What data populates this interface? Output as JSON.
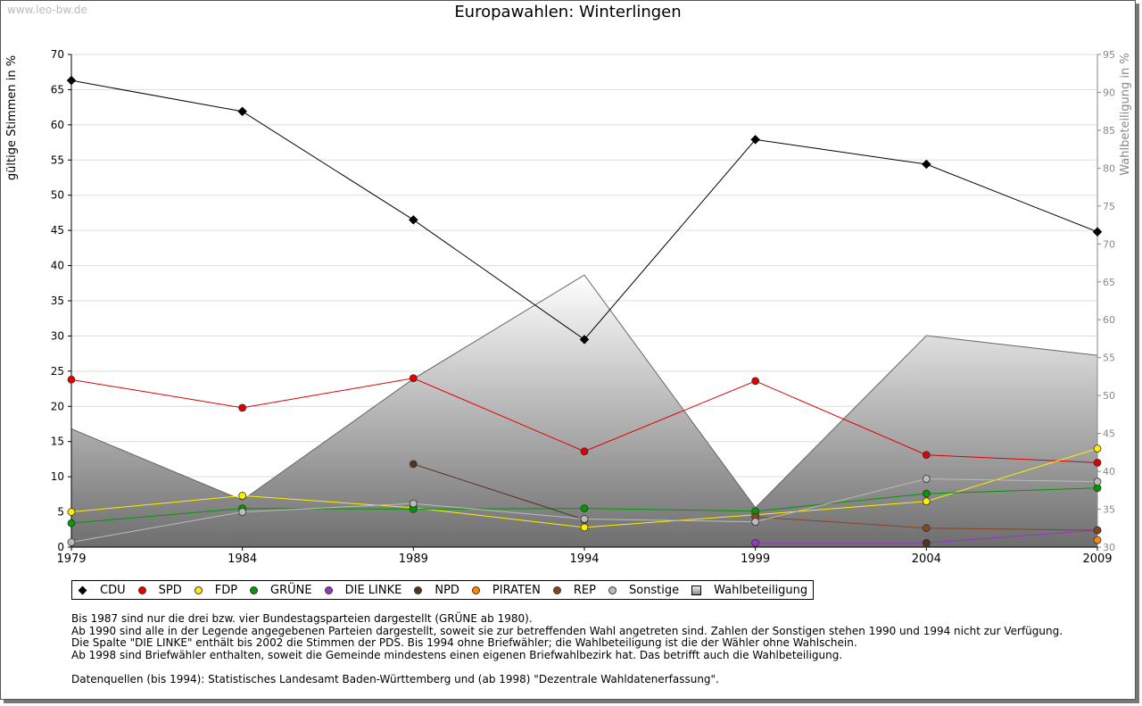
{
  "watermark": "www.leo-bw.de",
  "chart_data": {
    "type": "line",
    "title": "Europawahlen: Winterlingen",
    "ylabel": "gültige Stimmen in %",
    "y2label": "Wahlbeteiligung in %",
    "ylim": [
      0,
      70
    ],
    "y2lim": [
      30,
      95
    ],
    "yticks": [
      0,
      5,
      10,
      15,
      20,
      25,
      30,
      35,
      40,
      45,
      50,
      55,
      60,
      65,
      70
    ],
    "y2ticks": [
      30,
      35,
      40,
      45,
      50,
      55,
      60,
      65,
      70,
      75,
      80,
      85,
      90,
      95
    ],
    "x": [
      "1979",
      "1984",
      "1989",
      "1994",
      "1999",
      "2004",
      "2009"
    ],
    "grid": true,
    "legend_position": "bottom",
    "series": [
      {
        "name": "CDU",
        "color": "#000000",
        "marker": "diamond",
        "values": [
          66.3,
          61.9,
          46.5,
          29.5,
          57.9,
          54.4,
          44.8
        ]
      },
      {
        "name": "SPD",
        "color": "#e00000",
        "values": [
          23.8,
          19.8,
          24.0,
          13.6,
          23.6,
          13.1,
          12.0
        ]
      },
      {
        "name": "FDP",
        "color": "#ffee00",
        "values": [
          5.0,
          7.3,
          5.6,
          2.8,
          4.6,
          6.5,
          14.0
        ]
      },
      {
        "name": "GRÜNE",
        "color": "#009900",
        "values": [
          3.4,
          5.5,
          5.4,
          5.5,
          5.1,
          7.6,
          8.4
        ]
      },
      {
        "name": "DIE LINKE",
        "color": "#9933cc",
        "values": [
          null,
          null,
          null,
          null,
          0.6,
          0.6,
          2.4
        ]
      },
      {
        "name": "NPD",
        "color": "#553322",
        "values": [
          null,
          null,
          11.8,
          3.9,
          null,
          0.5,
          null
        ]
      },
      {
        "name": "PIRATEN",
        "color": "#ff8800",
        "values": [
          null,
          null,
          null,
          null,
          null,
          null,
          1.0
        ]
      },
      {
        "name": "REP",
        "color": "#884422",
        "values": [
          null,
          null,
          null,
          null,
          4.3,
          2.7,
          2.4
        ]
      },
      {
        "name": "Sonstige",
        "color": "#bbbbbb",
        "values": [
          0.7,
          5.0,
          6.2,
          4.0,
          3.6,
          9.7,
          9.3
        ]
      }
    ],
    "turnout": {
      "name": "Wahlbeteiligung",
      "values": [
        45.6,
        36.2,
        52.2,
        65.9,
        35.2,
        57.9,
        55.3
      ]
    }
  },
  "notes": [
    "Bis 1987 sind nur die drei bzw. vier Bundestagsparteien dargestellt (GRÜNE ab 1980).",
    "Ab 1990 sind alle in der Legende angegebenen Parteien dargestellt, soweit sie zur betreffenden Wahl angetreten sind. Zahlen der Sonstigen stehen 1990 und 1994 nicht zur Verfügung.",
    "Die Spalte \"DIE LINKE\" enthält bis 2002 die Stimmen der PDS. Bis 1994 ohne Briefwähler; die Wahlbeteiligung ist die der Wähler ohne Wahlschein.",
    "Ab 1998 sind Briefwähler enthalten, soweit die Gemeinde mindestens einen eigenen Briefwahlbezirk hat. Das betrifft auch die Wahlbeteiligung.",
    "",
    "Datenquellen (bis 1994): Statistisches Landesamt Baden-Württemberg und (ab 1998) \"Dezentrale Wahldatenerfassung\"."
  ]
}
